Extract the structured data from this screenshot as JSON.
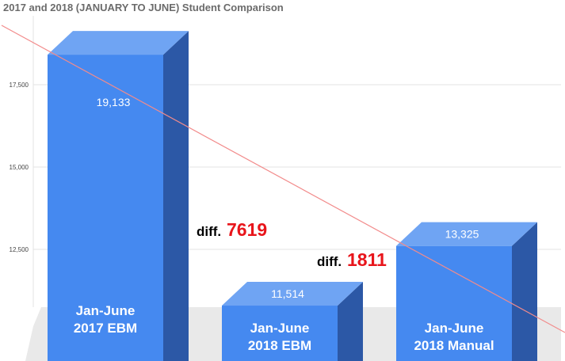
{
  "chart_data": {
    "type": "bar",
    "title": "2017 and 2018 (JANUARY TO JUNE) Student Comparison",
    "categories": [
      [
        "Jan-June",
        "2017 EBM"
      ],
      [
        "Jan-June",
        "2018 EBM"
      ],
      [
        "Jan-June",
        "2018 Manual"
      ]
    ],
    "values": [
      19133,
      11514,
      13325
    ],
    "value_labels": [
      "19,133",
      "11,514",
      "13,325"
    ],
    "yticks": [
      "12,500",
      "15,000",
      "17,500"
    ],
    "ytick_values": [
      12500,
      15000,
      17500
    ],
    "ylim": [
      10200,
      20500
    ],
    "style": "3d-columns",
    "grid": true,
    "trendline": true,
    "annotations": [
      {
        "prefix": "diff.",
        "value": "7619"
      },
      {
        "prefix": "diff.",
        "value": "1811"
      }
    ],
    "colors": {
      "bar_front": "#4589f0",
      "bar_top": "#6fa4f3",
      "bar_side": "#2c58a6",
      "trendline": "#f28b8b",
      "diff_value": "#e8151b"
    }
  }
}
